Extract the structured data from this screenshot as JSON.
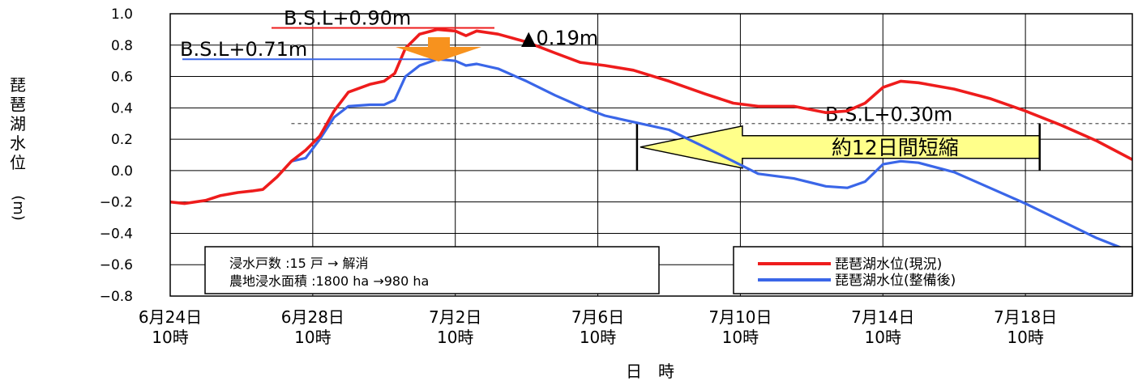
{
  "chart_data": {
    "type": "line",
    "ylabel": "琵琶湖水位",
    "yunit": "(m)",
    "xlabel": "日　時",
    "ylim": [
      -0.8,
      1.0
    ],
    "yticks": [
      {
        "v": 1.0,
        "label": "1.0"
      },
      {
        "v": 0.8,
        "label": "0.8"
      },
      {
        "v": 0.6,
        "label": "0.6"
      },
      {
        "v": 0.4,
        "label": "0.4"
      },
      {
        "v": 0.2,
        "label": "0.2"
      },
      {
        "v": 0.0,
        "label": "0.0"
      },
      {
        "v": -0.2,
        "label": "−0.2"
      },
      {
        "v": -0.4,
        "label": "−0.4"
      },
      {
        "v": -0.6,
        "label": "−0.6"
      },
      {
        "v": -0.8,
        "label": "−0.8"
      }
    ],
    "xlim": [
      0,
      27
    ],
    "xticks": [
      {
        "v": 0,
        "line1": "6月24日",
        "line2": "10時"
      },
      {
        "v": 4,
        "line1": "6月28日",
        "line2": "10時"
      },
      {
        "v": 8,
        "line1": "7月2日",
        "line2": "10時"
      },
      {
        "v": 12,
        "line1": "7月6日",
        "line2": "10時"
      },
      {
        "v": 16,
        "line1": "7月10日",
        "line2": "10時"
      },
      {
        "v": 20,
        "line1": "7月14日",
        "line2": "10時"
      },
      {
        "v": 24,
        "line1": "7月18日",
        "line2": "10時"
      }
    ],
    "grid": true,
    "series": [
      {
        "name": "琵琶湖水位(現況)",
        "color": "#ee1c1c",
        "points": [
          [
            0,
            -0.2
          ],
          [
            0.4,
            -0.21
          ],
          [
            1.0,
            -0.19
          ],
          [
            1.4,
            -0.16
          ],
          [
            1.9,
            -0.14
          ],
          [
            2.3,
            -0.13
          ],
          [
            2.6,
            -0.12
          ],
          [
            3.0,
            -0.04
          ],
          [
            3.4,
            0.06
          ],
          [
            3.8,
            0.13
          ],
          [
            4.2,
            0.22
          ],
          [
            4.6,
            0.38
          ],
          [
            5.0,
            0.5
          ],
          [
            5.6,
            0.55
          ],
          [
            6.0,
            0.57
          ],
          [
            6.3,
            0.62
          ],
          [
            6.6,
            0.78
          ],
          [
            7.0,
            0.87
          ],
          [
            7.5,
            0.9
          ],
          [
            8.0,
            0.89
          ],
          [
            8.3,
            0.86
          ],
          [
            8.6,
            0.89
          ],
          [
            9.2,
            0.87
          ],
          [
            10.0,
            0.82
          ],
          [
            10.8,
            0.75
          ],
          [
            11.5,
            0.69
          ],
          [
            12.2,
            0.67
          ],
          [
            13.0,
            0.64
          ],
          [
            14.0,
            0.57
          ],
          [
            15.0,
            0.49
          ],
          [
            15.8,
            0.43
          ],
          [
            16.5,
            0.41
          ],
          [
            17.5,
            0.41
          ],
          [
            18.4,
            0.37
          ],
          [
            19.0,
            0.38
          ],
          [
            19.5,
            0.43
          ],
          [
            20.0,
            0.53
          ],
          [
            20.5,
            0.57
          ],
          [
            21.0,
            0.56
          ],
          [
            22.0,
            0.52
          ],
          [
            23.0,
            0.46
          ],
          [
            24.0,
            0.38
          ],
          [
            25.0,
            0.29
          ],
          [
            26.0,
            0.19
          ],
          [
            27.0,
            0.07
          ]
        ]
      },
      {
        "name": "琵琶湖水位(整備後)",
        "color": "#3a66e8",
        "points": [
          [
            3.4,
            0.06
          ],
          [
            3.8,
            0.08
          ],
          [
            4.2,
            0.2
          ],
          [
            4.6,
            0.34
          ],
          [
            5.0,
            0.41
          ],
          [
            5.6,
            0.42
          ],
          [
            6.0,
            0.42
          ],
          [
            6.3,
            0.45
          ],
          [
            6.6,
            0.6
          ],
          [
            7.0,
            0.67
          ],
          [
            7.5,
            0.71
          ],
          [
            8.0,
            0.7
          ],
          [
            8.3,
            0.67
          ],
          [
            8.6,
            0.68
          ],
          [
            9.2,
            0.65
          ],
          [
            10.0,
            0.57
          ],
          [
            10.8,
            0.48
          ],
          [
            11.5,
            0.41
          ],
          [
            12.2,
            0.35
          ],
          [
            13.0,
            0.31
          ],
          [
            14.0,
            0.26
          ],
          [
            15.0,
            0.15
          ],
          [
            15.8,
            0.06
          ],
          [
            16.5,
            -0.02
          ],
          [
            17.5,
            -0.05
          ],
          [
            18.4,
            -0.1
          ],
          [
            19.0,
            -0.11
          ],
          [
            19.5,
            -0.07
          ],
          [
            20.0,
            0.04
          ],
          [
            20.5,
            0.06
          ],
          [
            21.0,
            0.05
          ],
          [
            22.0,
            -0.01
          ],
          [
            23.0,
            -0.11
          ],
          [
            24.0,
            -0.21
          ],
          [
            25.0,
            -0.32
          ],
          [
            26.0,
            -0.43
          ],
          [
            27.0,
            -0.52
          ]
        ]
      }
    ],
    "reference_line": {
      "y": 0.3,
      "label": "B.S.L+0.30m"
    },
    "annotations": {
      "peak_current": "B.S.L+0.90m",
      "peak_after": "B.S.L+0.71m",
      "reduction": "▲0.19m",
      "shortening": "約12日間短縮",
      "shortening_from": 13.1,
      "shortening_to": 24.4
    },
    "info_box": {
      "line1": "浸水戸数 :15 戸 → 解消",
      "line2": "農地浸水面積 :1800 ha →980 ha"
    },
    "legend": {
      "placement": "bottom-right"
    }
  }
}
